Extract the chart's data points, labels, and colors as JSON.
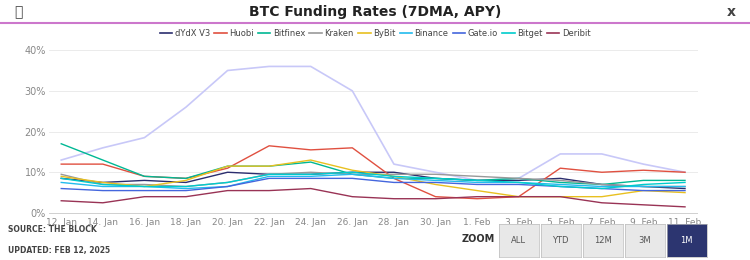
{
  "title": "BTC Funding Rates (7DMA, APY)",
  "background_color": "#ffffff",
  "header_line_color": "#cc77cc",
  "x_labels": [
    "12. Jan",
    "14. Jan",
    "16. Jan",
    "18. Jan",
    "20. Jan",
    "22. Jan",
    "24. Jan",
    "26. Jan",
    "28. Jan",
    "30. Jan",
    "1. Feb",
    "3. Feb",
    "5. Feb",
    "7. Feb",
    "9. Feb",
    "11. Feb"
  ],
  "ylim": [
    -0.005,
    0.42
  ],
  "yticks": [
    0.0,
    0.1,
    0.2,
    0.3,
    0.4
  ],
  "ytick_labels": [
    "0%",
    "10%",
    "20%",
    "30%",
    "40%"
  ],
  "source_line1": "SOURCE: THE BLOCK",
  "source_line2": "UPDATED: FEB 12, 2025",
  "zoom_label": "ZOOM",
  "zoom_buttons": [
    "ALL",
    "YTD",
    "12M",
    "3M",
    "1M"
  ],
  "series": {
    "dYdX V3": {
      "color": "#2b2d6e",
      "data": [
        0.085,
        0.075,
        0.08,
        0.075,
        0.1,
        0.095,
        0.095,
        0.1,
        0.1,
        0.085,
        0.08,
        0.08,
        0.085,
        0.07,
        0.065,
        0.06
      ]
    },
    "Huobi": {
      "color": "#e05040",
      "data": [
        0.12,
        0.12,
        0.09,
        0.085,
        0.11,
        0.165,
        0.155,
        0.16,
        0.085,
        0.04,
        0.035,
        0.04,
        0.11,
        0.1,
        0.105,
        0.1
      ]
    },
    "Bitfinex": {
      "color": "#00b894",
      "data": [
        0.17,
        0.13,
        0.09,
        0.085,
        0.115,
        0.115,
        0.125,
        0.095,
        0.085,
        0.085,
        0.08,
        0.085,
        0.075,
        0.07,
        0.08,
        0.08
      ]
    },
    "Kraken": {
      "color": "#999999",
      "data": [
        0.095,
        0.07,
        0.07,
        0.065,
        0.075,
        0.095,
        0.1,
        0.095,
        0.095,
        0.095,
        0.09,
        0.085,
        0.08,
        0.07,
        0.065,
        0.065
      ]
    },
    "ByBit": {
      "color": "#e8c020",
      "data": [
        0.09,
        0.075,
        0.065,
        0.08,
        0.115,
        0.115,
        0.13,
        0.105,
        0.09,
        0.07,
        0.055,
        0.04,
        0.04,
        0.04,
        0.055,
        0.05
      ]
    },
    "Binance": {
      "color": "#22bbee",
      "data": [
        0.075,
        0.065,
        0.065,
        0.06,
        0.065,
        0.09,
        0.09,
        0.095,
        0.085,
        0.08,
        0.075,
        0.075,
        0.07,
        0.065,
        0.065,
        0.065
      ]
    },
    "Gate.io": {
      "color": "#4466dd",
      "data": [
        0.06,
        0.055,
        0.055,
        0.055,
        0.065,
        0.085,
        0.085,
        0.085,
        0.075,
        0.075,
        0.07,
        0.07,
        0.065,
        0.06,
        0.055,
        0.055
      ]
    },
    "Bitget": {
      "color": "#00cccc",
      "data": [
        0.085,
        0.07,
        0.065,
        0.065,
        0.075,
        0.095,
        0.095,
        0.1,
        0.09,
        0.085,
        0.08,
        0.075,
        0.065,
        0.06,
        0.07,
        0.075
      ]
    },
    "Deribit": {
      "color": "#993355",
      "data": [
        0.03,
        0.025,
        0.04,
        0.04,
        0.055,
        0.055,
        0.06,
        0.04,
        0.035,
        0.035,
        0.04,
        0.04,
        0.04,
        0.025,
        0.02,
        0.015
      ]
    }
  },
  "purple_series": {
    "color": "#c8c8f8",
    "data": [
      0.13,
      0.16,
      0.185,
      0.26,
      0.35,
      0.36,
      0.36,
      0.3,
      0.12,
      0.1,
      0.08,
      0.085,
      0.145,
      0.145,
      0.12,
      0.1
    ]
  }
}
